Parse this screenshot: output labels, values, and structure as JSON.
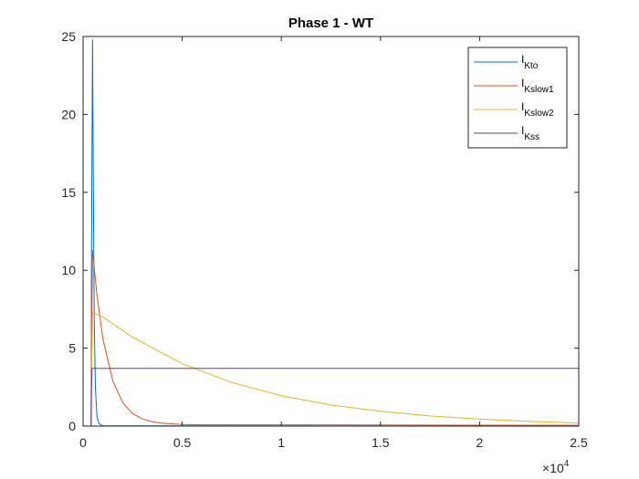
{
  "chart_data": {
    "type": "line",
    "title": "Phase 1 - WT",
    "xlim": [
      0,
      25000
    ],
    "ylim": [
      0,
      25
    ],
    "x_ticks": [
      0,
      5000,
      10000,
      15000,
      20000,
      25000
    ],
    "x_tick_labels": [
      "0",
      "0.5",
      "1",
      "1.5",
      "2",
      "2.5"
    ],
    "x_multiplier": {
      "base": "×10",
      "exponent": "4"
    },
    "y_ticks": [
      0,
      5,
      10,
      15,
      20,
      25
    ],
    "y_tick_labels": [
      "0",
      "5",
      "10",
      "15",
      "20",
      "25"
    ],
    "grid": false,
    "legend_position": "top-right",
    "series": [
      {
        "name": "I_Kto",
        "legend_main": "I",
        "legend_sub": "Kto",
        "color": "#0072BD",
        "x": [
          0,
          400,
          430,
          480,
          520,
          560,
          620,
          700,
          800,
          1000,
          25000
        ],
        "y": [
          0,
          0,
          12,
          24.8,
          15,
          7,
          2.5,
          0.6,
          0.15,
          0.02,
          0
        ]
      },
      {
        "name": "I_Kslow1",
        "legend_main": "I",
        "legend_sub": "Kslow1",
        "color": "#D95319",
        "x": [
          0,
          400,
          430,
          480,
          700,
          1000,
          1500,
          2000,
          2500,
          3000,
          3500,
          4000,
          5000,
          6000,
          25000
        ],
        "y": [
          0,
          0,
          6,
          11.3,
          8.4,
          5.6,
          2.9,
          1.5,
          0.8,
          0.45,
          0.28,
          0.18,
          0.1,
          0.08,
          0.05
        ]
      },
      {
        "name": "I_Kslow2",
        "legend_main": "I",
        "legend_sub": "Kslow2",
        "color": "#EDB120",
        "x": [
          0,
          400,
          430,
          480,
          1000,
          2500,
          5000,
          7500,
          10000,
          12500,
          15000,
          17500,
          20000,
          22500,
          25000
        ],
        "y": [
          0,
          0,
          4,
          7.3,
          7.0,
          5.7,
          4.0,
          2.8,
          1.95,
          1.35,
          0.95,
          0.65,
          0.45,
          0.3,
          0.2
        ]
      },
      {
        "name": "I_Kss",
        "legend_main": "I",
        "legend_sub": "Kss",
        "color": "#7E2F8E",
        "x": [
          0,
          400,
          440,
          25000
        ],
        "y": [
          0,
          0,
          3.7,
          3.7
        ]
      }
    ]
  }
}
